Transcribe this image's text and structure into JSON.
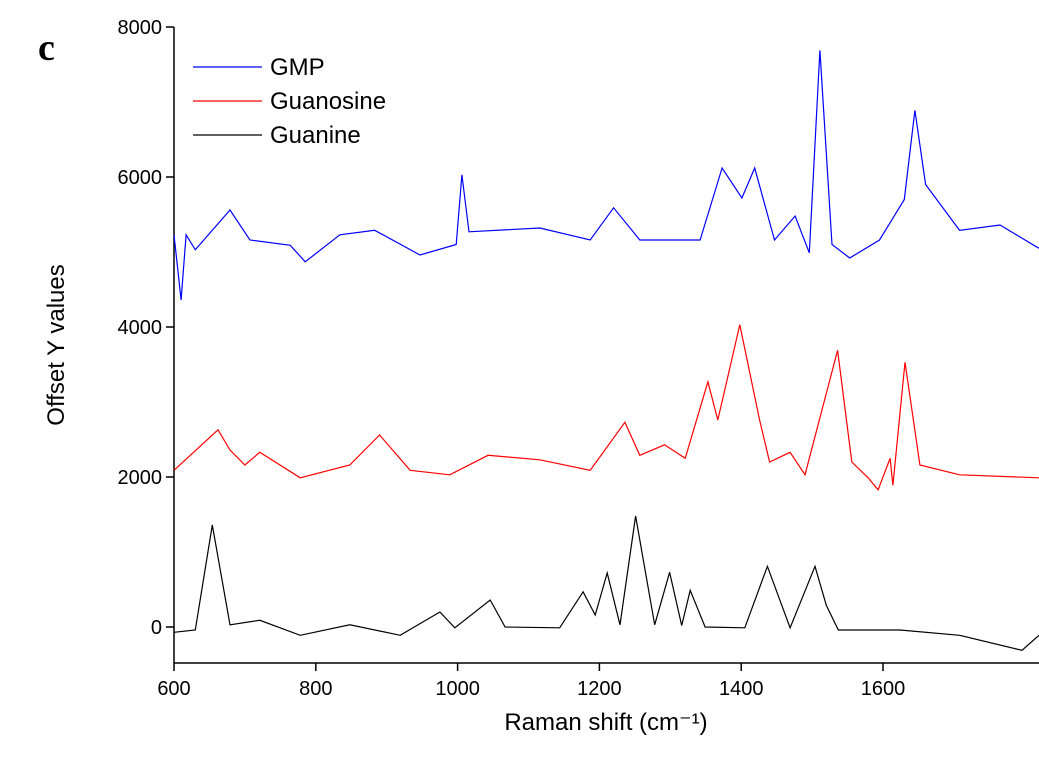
{
  "chart_data": {
    "type": "line",
    "panel_label": "c",
    "xlabel": "Raman shift (cm⁻¹)",
    "ylabel": "Offset Y values",
    "xlim": [
      600,
      1820
    ],
    "xticks": [
      600,
      800,
      1000,
      1200,
      1400,
      1600
    ],
    "ylim": [
      -480,
      8000
    ],
    "yticks": [
      0,
      2000,
      4000,
      6000,
      8000
    ],
    "legend": "upper left",
    "series": [
      {
        "name": "GMP",
        "color": "#0000ff",
        "x": [
          600,
          610,
          617,
          630,
          679,
          707,
          764,
          785,
          834,
          883,
          947,
          998,
          1006,
          1016,
          1116,
          1187,
          1220,
          1257,
          1342,
          1373,
          1401,
          1419,
          1447,
          1476,
          1496,
          1511,
          1528,
          1553,
          1595,
          1630,
          1645,
          1660,
          1708,
          1765,
          1820
        ],
        "values": [
          5230,
          4360,
          5230,
          5030,
          5560,
          5160,
          5090,
          4870,
          5230,
          5290,
          4960,
          5100,
          6030,
          5270,
          5320,
          5160,
          5590,
          5160,
          5160,
          6120,
          5720,
          6120,
          5160,
          5480,
          4990,
          7690,
          5100,
          4920,
          5160,
          5700,
          6890,
          5900,
          5290,
          5360,
          5050
        ]
      },
      {
        "name": "Guanosine",
        "color": "#ff0000",
        "x": [
          600,
          662,
          679,
          700,
          721,
          778,
          848,
          890,
          933,
          989,
          1043,
          1116,
          1187,
          1236,
          1257,
          1292,
          1321,
          1353,
          1367,
          1398,
          1426,
          1440,
          1469,
          1490,
          1536,
          1556,
          1579,
          1593,
          1610,
          1614,
          1631,
          1652,
          1708,
          1820
        ],
        "values": [
          2090,
          2630,
          2360,
          2160,
          2330,
          1990,
          2160,
          2560,
          2090,
          2030,
          2290,
          2230,
          2090,
          2730,
          2290,
          2430,
          2250,
          3270,
          2760,
          4030,
          2760,
          2200,
          2330,
          2030,
          3690,
          2200,
          1990,
          1830,
          2250,
          1890,
          3530,
          2160,
          2030,
          1990
        ]
      },
      {
        "name": "Guanine",
        "color": "#000000",
        "x": [
          600,
          630,
          654,
          679,
          721,
          778,
          848,
          919,
          975,
          996,
          1046,
          1067,
          1144,
          1177,
          1194,
          1211,
          1229,
          1251,
          1278,
          1299,
          1316,
          1328,
          1349,
          1405,
          1437,
          1469,
          1504,
          1520,
          1537,
          1624,
          1708,
          1796,
          1820
        ],
        "values": [
          -70,
          -40,
          1360,
          30,
          90,
          -110,
          30,
          -110,
          200,
          -10,
          360,
          0,
          -10,
          470,
          160,
          720,
          30,
          1480,
          30,
          730,
          20,
          490,
          0,
          -10,
          810,
          -10,
          810,
          290,
          -40,
          -40,
          -110,
          -310,
          -110
        ]
      }
    ]
  }
}
